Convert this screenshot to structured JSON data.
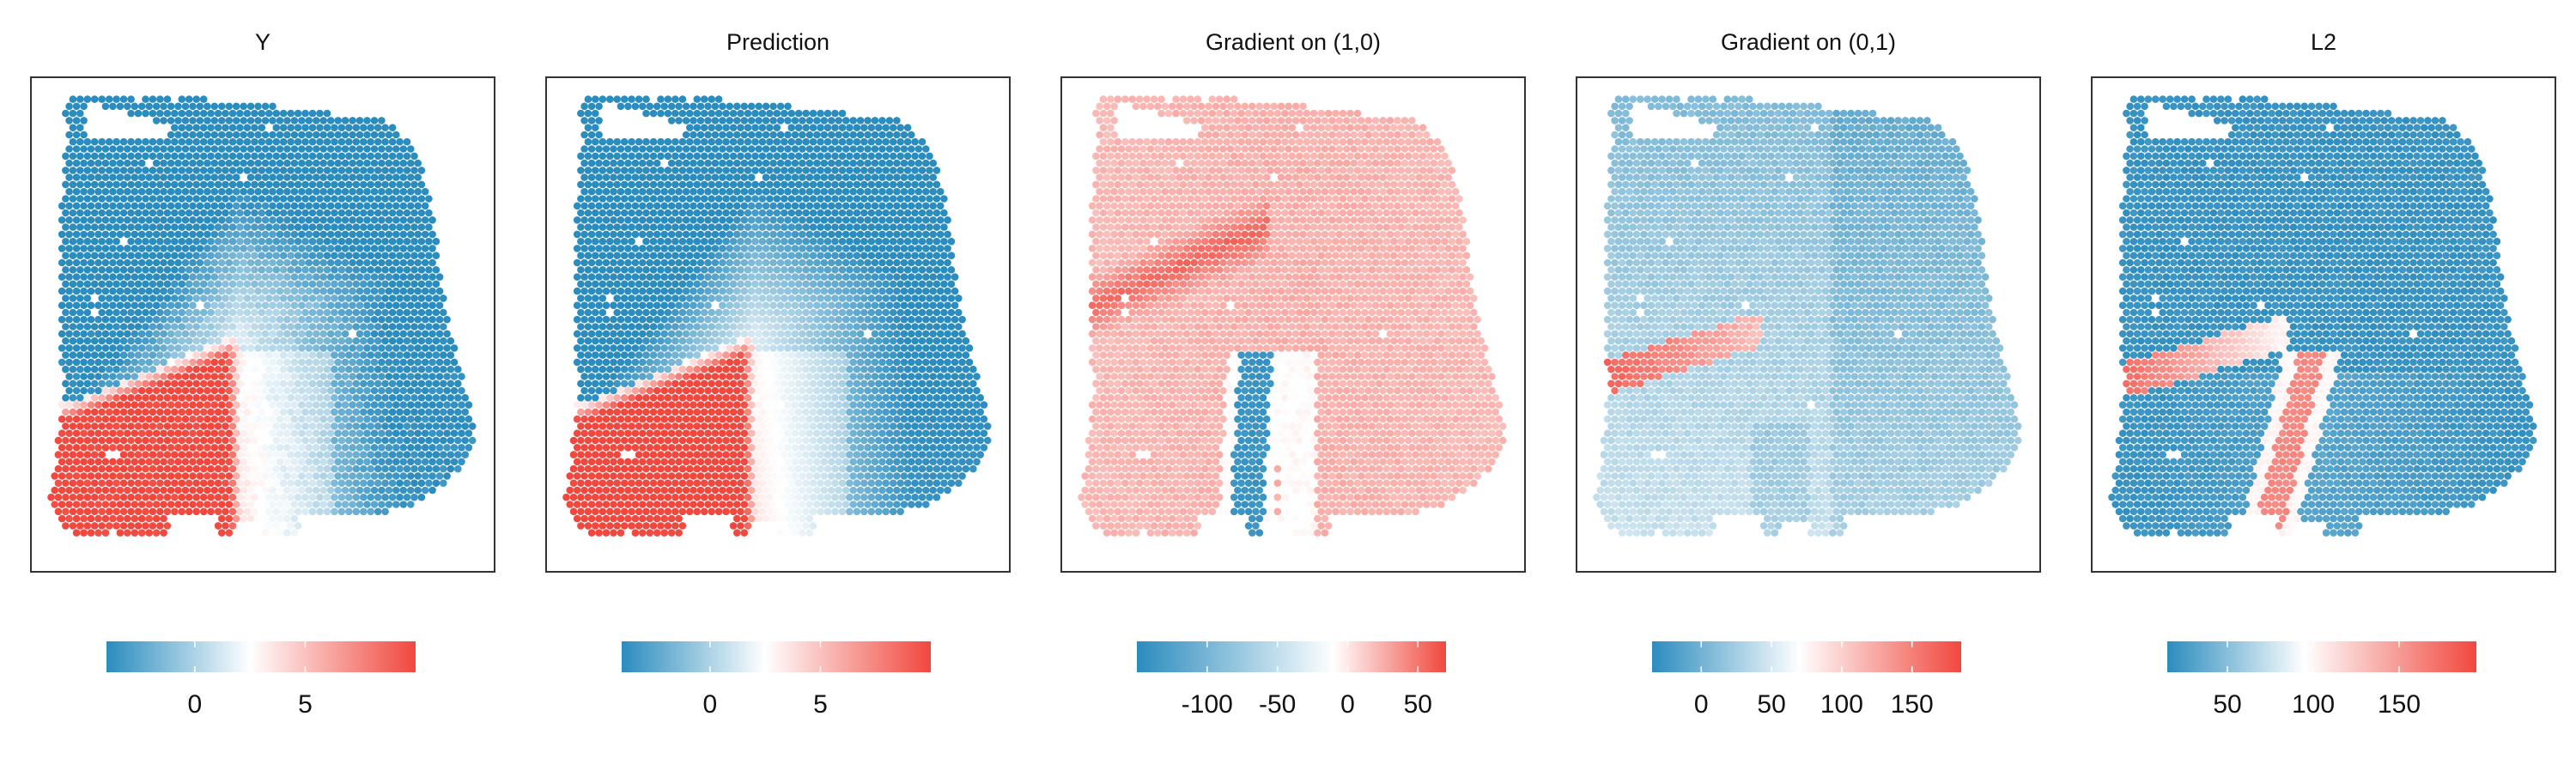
{
  "colors": {
    "low": "#2b8cbe",
    "mid": "#ffffff",
    "high": "#f0483e",
    "frame": "#333333",
    "tick": "#ffffff"
  },
  "chart_data": [
    {
      "type": "heatmap",
      "title": "Y",
      "pattern": "y",
      "scale": {
        "min": -4,
        "mid": 2.5,
        "max": 10
      },
      "colorbar_ticks": [
        {
          "value": 0,
          "label": "0"
        },
        {
          "value": 5,
          "label": "5"
        }
      ]
    },
    {
      "type": "heatmap",
      "title": "Prediction",
      "pattern": "prediction",
      "scale": {
        "min": -4,
        "mid": 2.5,
        "max": 10
      },
      "colorbar_ticks": [
        {
          "value": 0,
          "label": "0"
        },
        {
          "value": 5,
          "label": "5"
        }
      ]
    },
    {
      "type": "heatmap",
      "title": "Gradient on (1,0)",
      "pattern": "grad10",
      "scale": {
        "min": -150,
        "mid": -10,
        "max": 70
      },
      "colorbar_ticks": [
        {
          "value": -100,
          "label": "-100"
        },
        {
          "value": -50,
          "label": "-50"
        },
        {
          "value": 0,
          "label": "0"
        },
        {
          "value": 50,
          "label": "50"
        }
      ]
    },
    {
      "type": "heatmap",
      "title": "Gradient on (0,1)",
      "pattern": "grad01",
      "scale": {
        "min": -35,
        "mid": 70,
        "max": 185
      },
      "colorbar_ticks": [
        {
          "value": 0,
          "label": "0"
        },
        {
          "value": 50,
          "label": "50"
        },
        {
          "value": 100,
          "label": "100"
        },
        {
          "value": 150,
          "label": "150"
        }
      ]
    },
    {
      "type": "heatmap",
      "title": "L2",
      "pattern": "l2",
      "scale": {
        "min": 15,
        "mid": 95,
        "max": 195
      },
      "colorbar_ticks": [
        {
          "value": 50,
          "label": "50"
        },
        {
          "value": 100,
          "label": "100"
        },
        {
          "value": 150,
          "label": "150"
        }
      ]
    }
  ]
}
